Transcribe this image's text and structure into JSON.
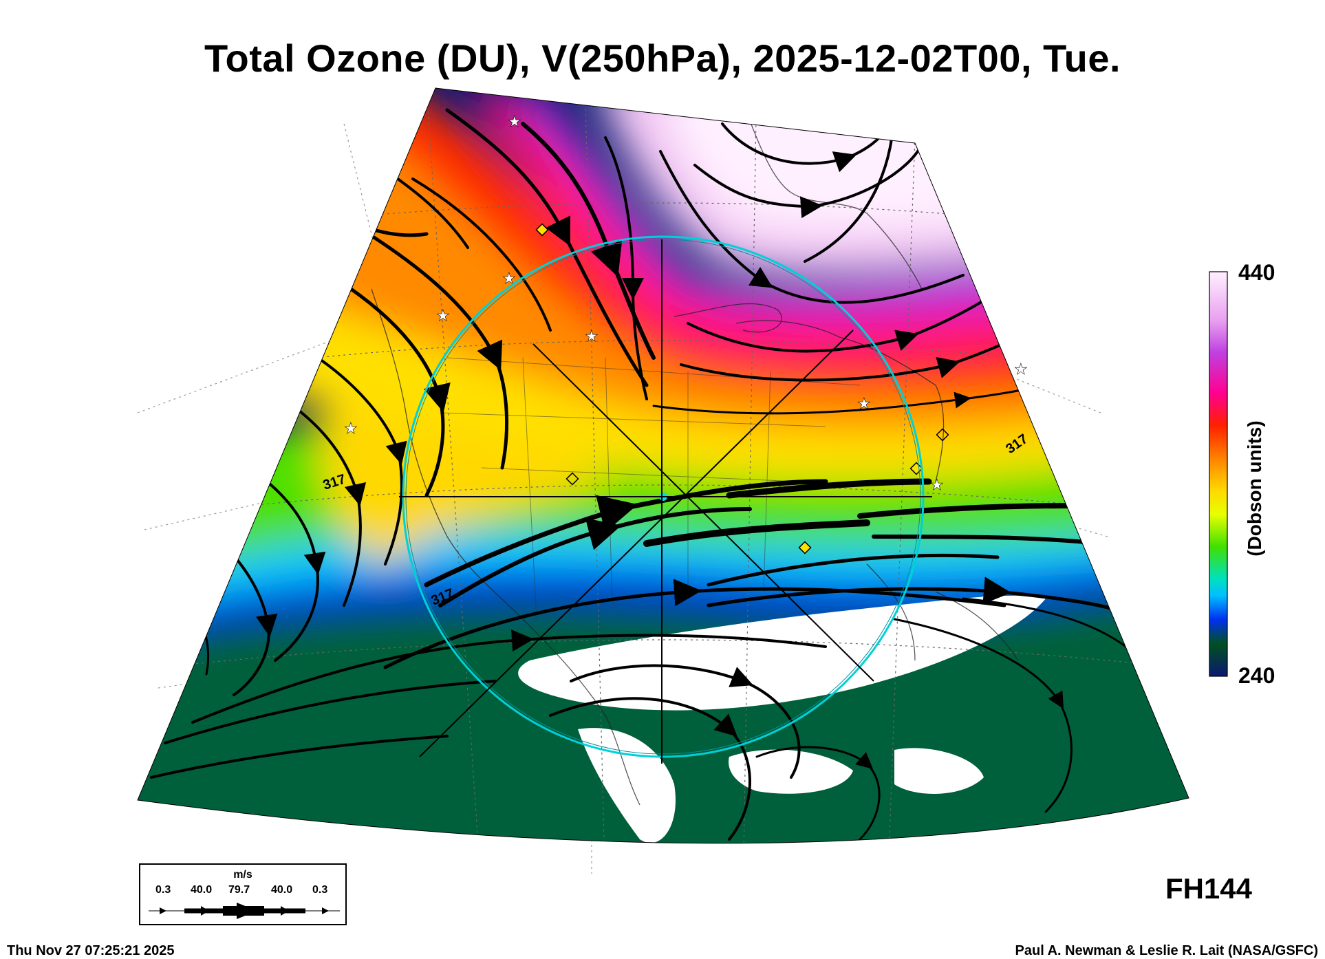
{
  "title": "Total Ozone (DU), V(250hPa), 2025-12-02T00, Tue.",
  "colorbar": {
    "max_label": "440",
    "min_label": "240",
    "axis_label": "(Dobson units)",
    "gradient": [
      "#fff0ff",
      "#f0b0f0",
      "#c040e0",
      "#ff0090",
      "#ff2000",
      "#ff8000",
      "#ffd800",
      "#ffff00",
      "#c8f000",
      "#40e000",
      "#00d060",
      "#00e0ff",
      "#0040ff",
      "#0000c0",
      "#005020",
      "#0a1a70"
    ]
  },
  "contour_labels": [
    "317",
    "317",
    "317"
  ],
  "forecast_hour": "FH144",
  "timestamp": "Thu Nov 27 07:25:21 2025",
  "credit": "Paul A. Newman & Leslie R. Lait (NASA/GSFC)",
  "wind_legend": {
    "unit": "m/s",
    "values": [
      "0.3",
      "40.0",
      "79.7",
      "40.0",
      "0.3"
    ]
  }
}
